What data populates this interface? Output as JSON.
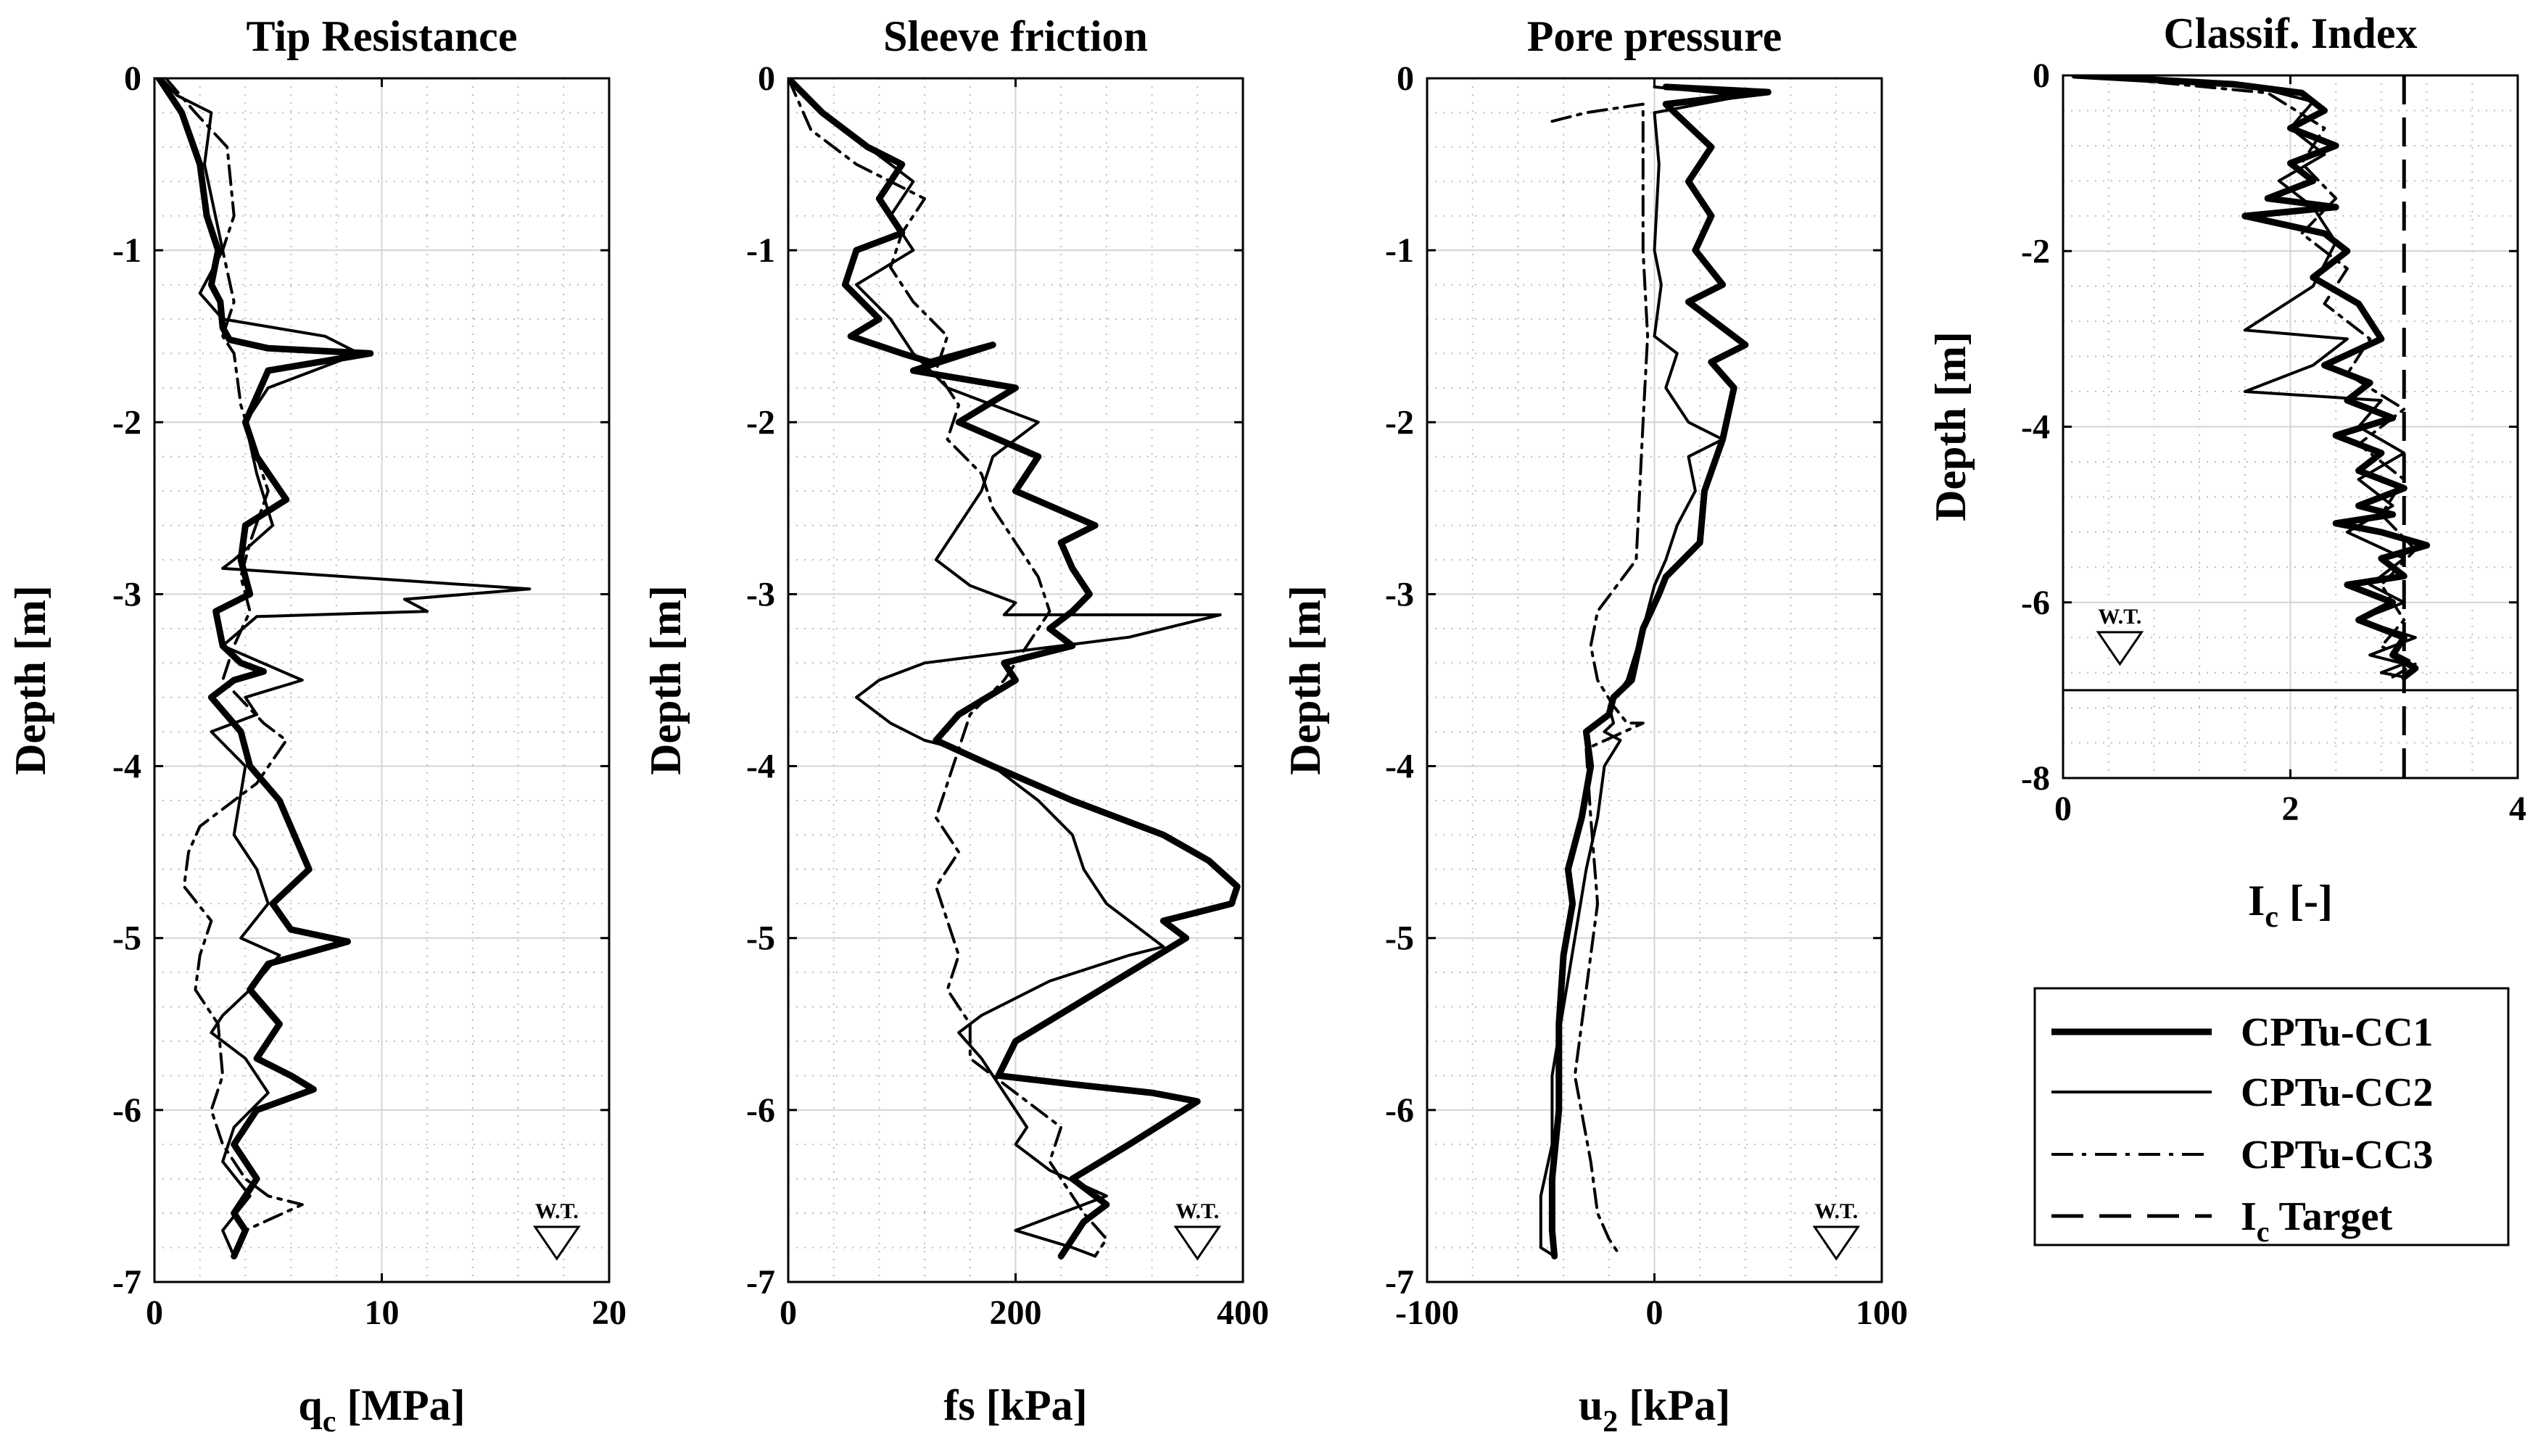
{
  "chart_data": [
    {
      "type": "line",
      "title": "Tip Resistance",
      "xlabel": "q",
      "xlabel_sub": "c",
      "xlabel_unit": " [MPa]",
      "ylabel": "Depth [m]",
      "xlim": [
        0,
        20
      ],
      "ylim": [
        -7,
        0
      ],
      "xticks": [
        0,
        10,
        20
      ],
      "yticks": [
        0,
        -1,
        -2,
        -3,
        -4,
        -5,
        -6,
        -7
      ],
      "xtick_labels": [
        "0",
        "10",
        "20"
      ],
      "ytick_labels": [
        "0",
        "-1",
        "-2",
        "-3",
        "-4",
        "-5",
        "-6",
        "-7"
      ],
      "water_table_label": "W.T.",
      "water_table_x": 17.7,
      "series": [
        {
          "name": "CPTu-CC1",
          "x": [
            0.2,
            1.2,
            2.0,
            2.3,
            2.8,
            2.5,
            2.9,
            3.0,
            3.3,
            5.0,
            9.5,
            5.0,
            4.0,
            4.5,
            5.8,
            4.0,
            3.8,
            4.2,
            2.7,
            3.0,
            3.8,
            4.8,
            3.5,
            2.5,
            3.8,
            4.2,
            5.5,
            6.8,
            5.2,
            6.0,
            8.5,
            5.0,
            4.2,
            5.5,
            4.5,
            6.0,
            7.0,
            4.5,
            3.5,
            4.5,
            3.5,
            4.0,
            3.5
          ],
          "y": [
            0,
            -0.2,
            -0.5,
            -0.8,
            -1.0,
            -1.2,
            -1.3,
            -1.45,
            -1.52,
            -1.57,
            -1.6,
            -1.7,
            -2.0,
            -2.2,
            -2.45,
            -2.6,
            -2.8,
            -3.0,
            -3.1,
            -3.3,
            -3.4,
            -3.45,
            -3.5,
            -3.6,
            -3.8,
            -4.0,
            -4.2,
            -4.6,
            -4.8,
            -4.95,
            -5.02,
            -5.15,
            -5.3,
            -5.5,
            -5.7,
            -5.8,
            -5.88,
            -6.0,
            -6.2,
            -6.4,
            -6.6,
            -6.7,
            -6.85
          ]
        },
        {
          "name": "CPTu-CC2",
          "x": [
            0.3,
            1.0,
            2.5,
            2.2,
            3.0,
            2.0,
            3.0,
            7.5,
            9.0,
            5.0,
            4.0,
            4.5,
            5.2,
            3.5,
            3.0,
            16.5,
            11.0,
            12.0,
            4.5,
            3.0,
            6.5,
            4.0,
            4.5,
            2.5,
            4.0,
            3.5,
            4.5,
            5.0,
            3.8,
            5.5,
            4.2,
            3.0,
            2.5,
            4.0,
            5.0,
            3.5,
            3.0,
            4.2,
            3.0,
            3.5
          ],
          "y": [
            0,
            -0.1,
            -0.2,
            -0.5,
            -1.0,
            -1.25,
            -1.4,
            -1.5,
            -1.6,
            -1.8,
            -2.0,
            -2.3,
            -2.6,
            -2.8,
            -2.85,
            -2.97,
            -3.03,
            -3.1,
            -3.13,
            -3.3,
            -3.5,
            -3.6,
            -3.7,
            -3.8,
            -4.0,
            -4.4,
            -4.6,
            -4.8,
            -5.0,
            -5.1,
            -5.3,
            -5.45,
            -5.55,
            -5.7,
            -5.9,
            -6.1,
            -6.3,
            -6.5,
            -6.7,
            -6.85
          ]
        },
        {
          "name": "CPTu-CC3",
          "x": [
            0.5,
            1.8,
            3.2,
            3.5,
            3.0,
            3.5,
            3.0,
            3.5,
            3.8,
            4.5,
            5.0,
            4.2,
            3.8,
            4.2,
            3.5,
            3.0,
            4.8,
            5.8,
            4.5,
            3.5,
            2.0,
            1.5,
            1.3,
            2.5,
            2.0,
            1.8,
            2.8,
            3.0,
            2.5,
            3.0,
            4.0,
            5.0,
            6.5,
            4.0,
            3.5
          ],
          "y": [
            0,
            -0.2,
            -0.4,
            -0.8,
            -1.0,
            -1.3,
            -1.5,
            -1.6,
            -1.9,
            -2.2,
            -2.4,
            -2.7,
            -2.9,
            -3.1,
            -3.3,
            -3.5,
            -3.75,
            -3.85,
            -4.1,
            -4.2,
            -4.35,
            -4.5,
            -4.7,
            -4.9,
            -5.1,
            -5.3,
            -5.5,
            -5.8,
            -6.0,
            -6.2,
            -6.4,
            -6.5,
            -6.55,
            -6.7,
            -6.85
          ]
        }
      ]
    },
    {
      "type": "line",
      "title": "Sleeve friction",
      "xlabel": "fs [kPa]",
      "ylabel": "Depth [m]",
      "xlim": [
        0,
        400
      ],
      "ylim": [
        -7,
        0
      ],
      "xticks": [
        0,
        200,
        400
      ],
      "yticks": [
        0,
        -1,
        -2,
        -3,
        -4,
        -5,
        -6,
        -7
      ],
      "xtick_labels": [
        "0",
        "200",
        "400"
      ],
      "ytick_labels": [
        "0",
        "-1",
        "-2",
        "-3",
        "-4",
        "-5",
        "-6",
        "-7"
      ],
      "water_table_label": "W.T.",
      "water_table_x": 360,
      "series": [
        {
          "name": "CPTu-CC1",
          "x": [
            0,
            30,
            70,
            100,
            80,
            100,
            60,
            50,
            80,
            55,
            100,
            125,
            180,
            110,
            200,
            150,
            220,
            200,
            270,
            240,
            250,
            265,
            250,
            230,
            250,
            190,
            200,
            150,
            130,
            180,
            250,
            330,
            370,
            395,
            390,
            330,
            350,
            300,
            250,
            200,
            185,
            250,
            320,
            360,
            300,
            250,
            280,
            260,
            250,
            240
          ],
          "y": [
            0,
            -0.2,
            -0.4,
            -0.5,
            -0.7,
            -0.9,
            -1.0,
            -1.2,
            -1.4,
            -1.5,
            -1.6,
            -1.65,
            -1.55,
            -1.7,
            -1.8,
            -2.0,
            -2.2,
            -2.4,
            -2.6,
            -2.7,
            -2.85,
            -3.0,
            -3.1,
            -3.2,
            -3.3,
            -3.4,
            -3.5,
            -3.7,
            -3.85,
            -4.0,
            -4.2,
            -4.4,
            -4.55,
            -4.7,
            -4.8,
            -4.9,
            -5.0,
            -5.2,
            -5.4,
            -5.6,
            -5.8,
            -5.85,
            -5.9,
            -5.95,
            -6.2,
            -6.4,
            -6.55,
            -6.65,
            -6.75,
            -6.85
          ]
        },
        {
          "name": "CPTu-CC2",
          "x": [
            0,
            30,
            70,
            110,
            90,
            110,
            60,
            90,
            110,
            140,
            220,
            180,
            170,
            150,
            130,
            160,
            200,
            190,
            250,
            380,
            300,
            240,
            180,
            120,
            80,
            60,
            90,
            120,
            150,
            180,
            220,
            250,
            260,
            280,
            320,
            330,
            300,
            230,
            200,
            170,
            150,
            170,
            190,
            210,
            200,
            230,
            280,
            240,
            200,
            250,
            270
          ],
          "y": [
            0,
            -0.2,
            -0.4,
            -0.6,
            -0.8,
            -1.0,
            -1.2,
            -1.4,
            -1.6,
            -1.8,
            -2.0,
            -2.2,
            -2.4,
            -2.6,
            -2.8,
            -2.95,
            -3.05,
            -3.12,
            -3.12,
            -3.12,
            -3.25,
            -3.3,
            -3.35,
            -3.4,
            -3.5,
            -3.6,
            -3.75,
            -3.85,
            -3.9,
            -4.0,
            -4.2,
            -4.4,
            -4.6,
            -4.8,
            -5.0,
            -5.05,
            -5.1,
            -5.25,
            -5.35,
            -5.45,
            -5.55,
            -5.7,
            -5.9,
            -6.1,
            -6.2,
            -6.35,
            -6.5,
            -6.6,
            -6.7,
            -6.8,
            -6.85
          ]
        },
        {
          "name": "CPTu-CC3",
          "x": [
            0,
            20,
            60,
            90,
            120,
            100,
            90,
            110,
            140,
            130,
            150,
            140,
            170,
            180,
            200,
            220,
            230,
            210,
            190,
            160,
            150,
            140,
            130,
            150,
            130,
            140,
            150,
            140,
            160,
            160,
            200,
            240,
            230,
            250,
            260,
            280,
            270
          ],
          "y": [
            0,
            -0.3,
            -0.5,
            -0.6,
            -0.7,
            -0.9,
            -1.1,
            -1.3,
            -1.5,
            -1.7,
            -1.9,
            -2.1,
            -2.3,
            -2.5,
            -2.7,
            -2.9,
            -3.1,
            -3.3,
            -3.5,
            -3.7,
            -3.9,
            -4.1,
            -4.3,
            -4.5,
            -4.7,
            -4.9,
            -5.1,
            -5.3,
            -5.5,
            -5.7,
            -5.9,
            -6.1,
            -6.3,
            -6.5,
            -6.6,
            -6.75,
            -6.85
          ]
        }
      ]
    },
    {
      "type": "line",
      "title": "Pore pressure",
      "xlabel": "u",
      "xlabel_sub": "2",
      "xlabel_unit": " [kPa]",
      "ylabel": "Depth [m]",
      "xlim": [
        -100,
        100
      ],
      "ylim": [
        -7,
        0
      ],
      "xticks": [
        -100,
        0,
        100
      ],
      "yticks": [
        0,
        -1,
        -2,
        -3,
        -4,
        -5,
        -6,
        -7
      ],
      "xtick_labels": [
        "-100",
        "0",
        "100"
      ],
      "ytick_labels": [
        "0",
        "-1",
        "-2",
        "-3",
        "-4",
        "-5",
        "-6",
        "-7"
      ],
      "water_table_label": "W.T.",
      "water_table_x": 80,
      "series": [
        {
          "name": "CPTu-CC1",
          "x": [
            5,
            50,
            5,
            25,
            15,
            25,
            18,
            30,
            15,
            40,
            25,
            35,
            30,
            22,
            20,
            5,
            2,
            -5,
            -10,
            -18,
            -20,
            -30,
            -28,
            -32,
            -38,
            -36,
            -40,
            -42,
            -42,
            -45,
            -45,
            -44
          ],
          "y": [
            -0.05,
            -0.08,
            -0.15,
            -0.4,
            -0.6,
            -0.8,
            -1.0,
            -1.2,
            -1.3,
            -1.55,
            -1.65,
            -1.8,
            -2.1,
            -2.4,
            -2.7,
            -2.9,
            -3.0,
            -3.2,
            -3.5,
            -3.6,
            -3.7,
            -3.8,
            -4.0,
            -4.3,
            -4.6,
            -4.8,
            -5.1,
            -5.5,
            -6.0,
            -6.4,
            -6.7,
            -6.85
          ]
        },
        {
          "name": "CPTu-CC2",
          "x": [
            0,
            40,
            0,
            2,
            0,
            3,
            0,
            10,
            5,
            15,
            30,
            15,
            18,
            10,
            5,
            0,
            -5,
            -12,
            -20,
            -18,
            -22,
            -15,
            -22,
            -25,
            -30,
            -35,
            -40,
            -45,
            -45,
            -50,
            -50,
            -44
          ],
          "y": [
            -0.05,
            -0.1,
            -0.2,
            -0.5,
            -1.0,
            -1.2,
            -1.5,
            -1.6,
            -1.8,
            -2.0,
            -2.1,
            -2.2,
            -2.4,
            -2.6,
            -2.8,
            -2.95,
            -3.2,
            -3.5,
            -3.65,
            -3.75,
            -3.8,
            -3.85,
            -4.0,
            -4.3,
            -4.6,
            -5.0,
            -5.4,
            -5.8,
            -6.2,
            -6.5,
            -6.8,
            -6.85
          ]
        },
        {
          "name": "CPTu-CC3",
          "x": [
            -45,
            -30,
            -5,
            -5,
            -5,
            -3,
            -5,
            -8,
            -25,
            -28,
            -25,
            -18,
            -12,
            -5,
            -30,
            -28,
            -25,
            -30,
            -35,
            -28,
            -25,
            -20,
            -15
          ],
          "y": [
            -0.25,
            -0.2,
            -0.15,
            -0.5,
            -1.0,
            -1.5,
            -2.0,
            -2.8,
            -3.1,
            -3.3,
            -3.5,
            -3.65,
            -3.75,
            -3.75,
            -3.9,
            -4.3,
            -4.8,
            -5.3,
            -5.8,
            -6.3,
            -6.6,
            -6.75,
            -6.85
          ]
        }
      ]
    },
    {
      "type": "line",
      "title": "Classif. Index",
      "xlabel": "I",
      "xlabel_sub": "c",
      "xlabel_unit": " [-]",
      "ylabel": "Depth [m]",
      "xlim": [
        0,
        4
      ],
      "ylim": [
        -8,
        0
      ],
      "xticks": [
        0,
        2,
        4
      ],
      "yticks": [
        0,
        -2,
        -4,
        -6,
        -8
      ],
      "xtick_labels": [
        "0",
        "2",
        "4"
      ],
      "ytick_labels": [
        "0",
        "-2",
        "-4",
        "-6",
        "-8"
      ],
      "water_table_label": "W.T.",
      "water_table_x": 0.5,
      "water_table_depth": -7.0,
      "target_value": 3.0,
      "series": [
        {
          "name": "CPTu-CC1",
          "x": [
            0.1,
            1.5,
            2.1,
            2.3,
            2.0,
            2.4,
            2.0,
            2.2,
            1.8,
            2.4,
            1.6,
            2.3,
            2.5,
            2.2,
            2.6,
            2.8,
            2.3,
            2.7,
            2.5,
            2.9,
            2.4,
            2.8,
            2.6,
            3.0,
            2.6,
            2.9,
            2.4,
            2.8,
            3.2,
            2.8,
            3.0,
            2.5,
            2.9,
            2.6,
            3.0,
            2.9,
            3.1,
            3.0
          ],
          "y": [
            0,
            -0.1,
            -0.2,
            -0.4,
            -0.6,
            -0.8,
            -1.0,
            -1.2,
            -1.4,
            -1.5,
            -1.6,
            -1.8,
            -2.0,
            -2.3,
            -2.6,
            -3.0,
            -3.3,
            -3.5,
            -3.7,
            -3.9,
            -4.1,
            -4.3,
            -4.5,
            -4.7,
            -4.9,
            -5.0,
            -5.1,
            -5.2,
            -5.35,
            -5.5,
            -5.7,
            -5.8,
            -6.0,
            -6.2,
            -6.4,
            -6.6,
            -6.75,
            -6.85
          ]
        },
        {
          "name": "CPTu-CC2",
          "x": [
            0.2,
            1.6,
            2.2,
            2.0,
            2.3,
            1.9,
            2.2,
            2.4,
            2.2,
            1.6,
            2.5,
            2.2,
            1.6,
            2.8,
            2.6,
            3.0,
            2.6,
            2.9,
            2.5,
            3.0,
            2.7,
            3.0,
            2.6,
            3.1,
            2.7,
            3.0,
            2.8,
            3.0
          ],
          "y": [
            0,
            -0.1,
            -0.3,
            -0.6,
            -0.9,
            -1.2,
            -1.5,
            -1.9,
            -2.4,
            -2.9,
            -3.0,
            -3.3,
            -3.6,
            -3.7,
            -4.0,
            -4.3,
            -4.6,
            -4.9,
            -5.2,
            -5.5,
            -5.8,
            -6.0,
            -6.2,
            -6.4,
            -6.6,
            -6.7,
            -6.8,
            -6.85
          ]
        },
        {
          "name": "CPTu-CC3",
          "x": [
            0.2,
            1.8,
            2.3,
            2.1,
            2.4,
            2.1,
            2.5,
            2.3,
            2.7,
            2.5,
            3.0,
            2.6,
            3.0,
            2.8,
            3.1,
            2.8,
            3.0,
            2.8,
            3.1,
            2.9
          ],
          "y": [
            0,
            -0.2,
            -0.6,
            -1.0,
            -1.4,
            -1.8,
            -2.2,
            -2.6,
            -3.0,
            -3.4,
            -3.8,
            -4.2,
            -4.6,
            -5.0,
            -5.4,
            -5.8,
            -6.2,
            -6.5,
            -6.7,
            -6.85
          ]
        }
      ]
    }
  ],
  "legend": {
    "entries": [
      {
        "label": "CPTu-CC1",
        "style": "thick"
      },
      {
        "label": "CPTu-CC2",
        "style": "thin"
      },
      {
        "label": "CPTu-CC3",
        "style": "dashdot"
      },
      {
        "label": "I",
        "sub": "c",
        "suffix": " Target",
        "style": "dashed"
      }
    ]
  },
  "colors": {
    "line": "#000000",
    "grid_major": "#d4d4d4",
    "grid_minor": "#bdbdbd",
    "background": "#ffffff"
  }
}
